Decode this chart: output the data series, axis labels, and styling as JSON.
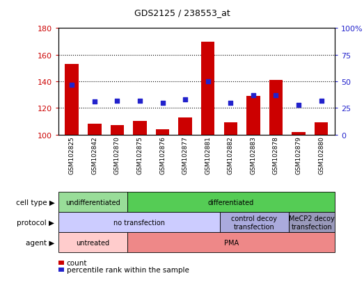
{
  "title": "GDS2125 / 238553_at",
  "samples": [
    "GSM102825",
    "GSM102842",
    "GSM102870",
    "GSM102875",
    "GSM102876",
    "GSM102877",
    "GSM102881",
    "GSM102882",
    "GSM102883",
    "GSM102878",
    "GSM102879",
    "GSM102880"
  ],
  "counts": [
    153,
    108,
    107,
    110,
    104,
    113,
    170,
    109,
    129,
    141,
    102,
    109
  ],
  "percentiles": [
    47,
    31,
    32,
    32,
    30,
    33,
    50,
    30,
    37,
    37,
    28,
    32
  ],
  "ylim_left": [
    100,
    180
  ],
  "ylim_right": [
    0,
    100
  ],
  "yticks_left": [
    100,
    120,
    140,
    160,
    180
  ],
  "yticks_right": [
    0,
    25,
    50,
    75,
    100
  ],
  "ytick_labels_right": [
    "0",
    "25",
    "50",
    "75",
    "100%"
  ],
  "bar_color": "#cc0000",
  "dot_color": "#2222cc",
  "grid_color": "#000000",
  "cell_type_rows": [
    {
      "label": "undifferentiated",
      "start": 0,
      "end": 3,
      "color": "#99dd99"
    },
    {
      "label": "differentiated",
      "start": 3,
      "end": 12,
      "color": "#55cc55"
    }
  ],
  "protocol_rows": [
    {
      "label": "no transfection",
      "start": 0,
      "end": 7,
      "color": "#ccccff"
    },
    {
      "label": "control decoy\ntransfection",
      "start": 7,
      "end": 10,
      "color": "#aaaadd"
    },
    {
      "label": "MeCP2 decoy\ntransfection",
      "start": 10,
      "end": 12,
      "color": "#9999bb"
    }
  ],
  "agent_rows": [
    {
      "label": "untreated",
      "start": 0,
      "end": 3,
      "color": "#ffcccc"
    },
    {
      "label": "PMA",
      "start": 3,
      "end": 12,
      "color": "#ee8888"
    }
  ],
  "row_labels": [
    "cell type",
    "protocol",
    "agent"
  ],
  "annotation_rows": [
    {
      "color": "#cc0000",
      "label": "count"
    },
    {
      "color": "#2222cc",
      "label": "percentile rank within the sample"
    }
  ],
  "background_color": "#ffffff",
  "plot_bg_color": "#ffffff",
  "border_color": "#000000",
  "plot_area_bg": "#f0f0f0"
}
